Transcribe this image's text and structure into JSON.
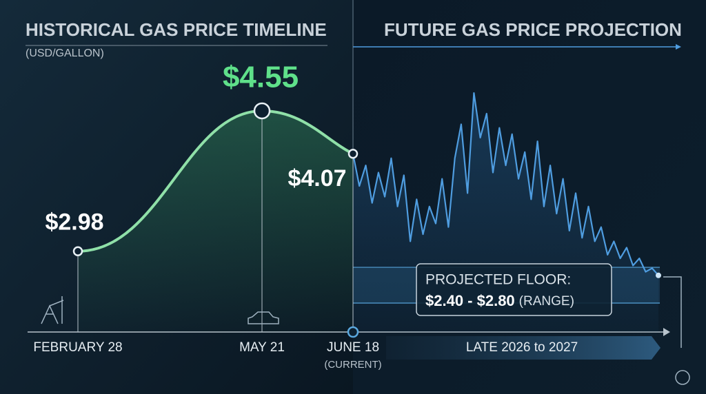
{
  "chart_data": {
    "type": "line",
    "title": "HISTORICAL GAS PRICE TIMELINE",
    "subtitle": "(USD/GALLON)",
    "categories": [
      "FEBRUARY 28",
      "MAY 21",
      "JUNE 18"
    ],
    "current_note": "(CURRENT)",
    "series": [
      {
        "values": [
          2.98,
          4.55,
          4.07
        ],
        "value_labels": [
          "$2.98",
          "$4.55",
          "$4.07"
        ],
        "color": "#8fe0a8",
        "peak_color": "#5fe08a"
      }
    ],
    "projection": {
      "title": "FUTURE GAS PRICE PROJECTION",
      "period": "LATE 2026 to 2027",
      "color": "#4f9de0",
      "values": [
        4.07,
        3.71,
        3.94,
        3.52,
        3.86,
        3.59,
        4.02,
        3.48,
        3.83,
        3.09,
        3.56,
        3.17,
        3.48,
        3.29,
        3.79,
        3.25,
        4.02,
        4.4,
        3.63,
        4.75,
        4.25,
        4.52,
        3.86,
        4.36,
        3.94,
        4.29,
        3.79,
        4.09,
        3.56,
        4.21,
        3.48,
        3.94,
        3.4,
        3.79,
        3.21,
        3.63,
        3.13,
        3.48,
        3.09,
        3.25,
        2.94,
        3.09,
        2.9,
        3.02,
        2.82,
        2.9,
        2.75,
        2.79,
        2.71
      ],
      "floor": {
        "label": "PROJECTED FLOOR:",
        "range_label": "$2.40 - $2.80",
        "note": "(RANGE)",
        "values": [
          2.4,
          2.8
        ]
      }
    }
  }
}
